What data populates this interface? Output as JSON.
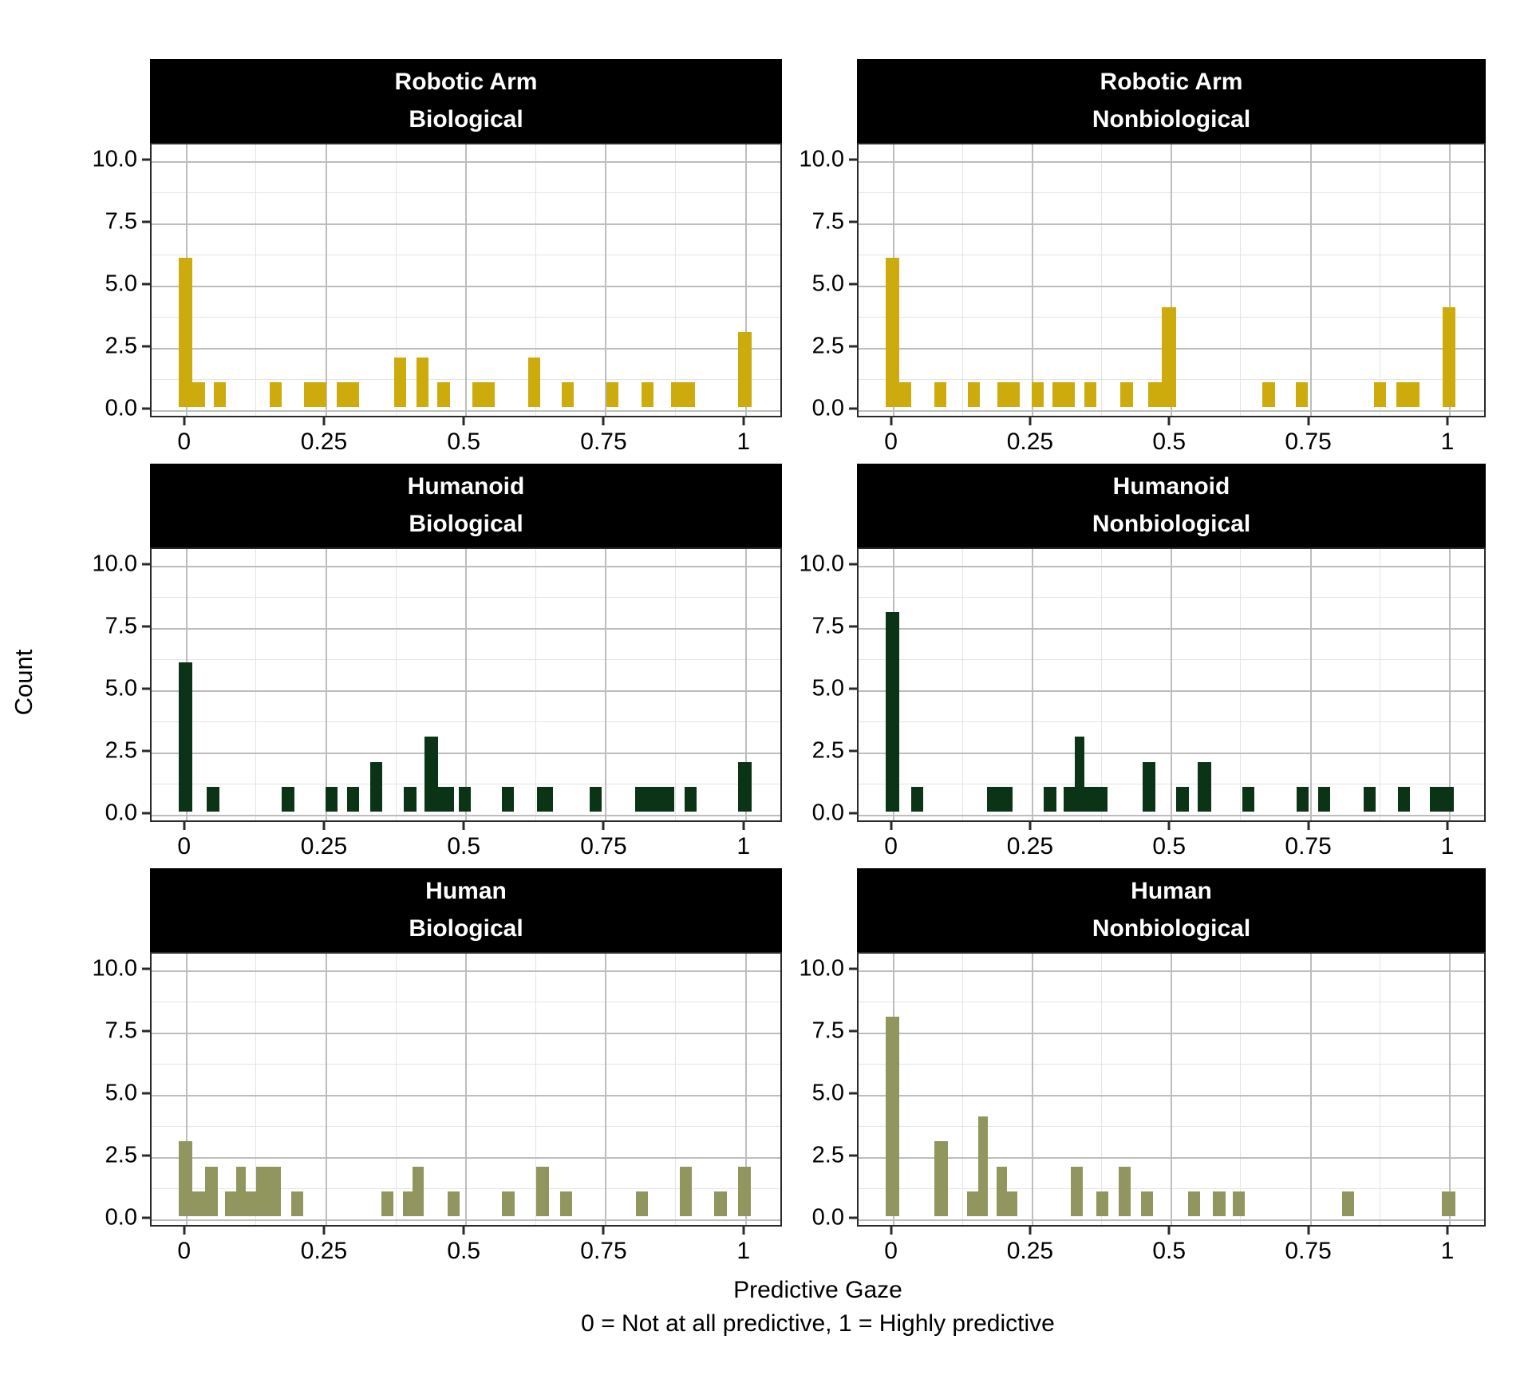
{
  "figure": {
    "y_axis_title": "Count",
    "x_axis_title_line1": "Predictive Gaze",
    "x_axis_title_line2": "0 = Not at all predictive, 1 = Highly predictive",
    "y_tick_labels": [
      "10.0",
      "7.5",
      "5.0",
      "2.5",
      "0.0"
    ],
    "x_tick_labels": [
      "0",
      "0.25",
      "0.5",
      "0.75",
      "1"
    ],
    "strip_bg_color": "#000000",
    "strip_text_color": "#ffffff",
    "colors": {
      "robotic_arm": "#CDAB0D",
      "humanoid": "#0B3417",
      "human": "#91965F"
    }
  },
  "chart_data": [
    {
      "type": "bar",
      "facet_line1": "Robotic Arm",
      "facet_line2": "Biological",
      "color": "#CDAB0D",
      "xlabel": "Predictive Gaze",
      "ylabel": "Count",
      "xlim": [
        -0.06,
        1.06
      ],
      "ylim": [
        0,
        10.4
      ],
      "x_ticks": [
        0,
        0.25,
        0.5,
        0.75,
        1
      ],
      "y_ticks": [
        0,
        2.5,
        5,
        7.5,
        10
      ],
      "bars_x_width_count": [
        [
          -0.012,
          0.024,
          6
        ],
        [
          0.012,
          0.022,
          1
        ],
        [
          0.05,
          0.022,
          1
        ],
        [
          0.15,
          0.022,
          1
        ],
        [
          0.212,
          0.04,
          1
        ],
        [
          0.27,
          0.04,
          1
        ],
        [
          0.372,
          0.022,
          2
        ],
        [
          0.412,
          0.022,
          2
        ],
        [
          0.45,
          0.022,
          1
        ],
        [
          0.512,
          0.04,
          1
        ],
        [
          0.612,
          0.022,
          2
        ],
        [
          0.672,
          0.022,
          1
        ],
        [
          0.752,
          0.022,
          1
        ],
        [
          0.815,
          0.022,
          1
        ],
        [
          0.868,
          0.042,
          1
        ],
        [
          0.988,
          0.024,
          3
        ]
      ]
    },
    {
      "type": "bar",
      "facet_line1": "Robotic Arm",
      "facet_line2": "Nonbiological",
      "color": "#CDAB0D",
      "xlabel": "Predictive Gaze",
      "ylabel": "Count",
      "xlim": [
        -0.06,
        1.06
      ],
      "ylim": [
        0,
        10.4
      ],
      "x_ticks": [
        0,
        0.25,
        0.5,
        0.75,
        1
      ],
      "y_ticks": [
        0,
        2.5,
        5,
        7.5,
        10
      ],
      "bars_x_width_count": [
        [
          -0.012,
          0.024,
          6
        ],
        [
          0.012,
          0.022,
          1
        ],
        [
          0.075,
          0.022,
          1
        ],
        [
          0.135,
          0.022,
          1
        ],
        [
          0.188,
          0.04,
          1
        ],
        [
          0.25,
          0.022,
          1
        ],
        [
          0.288,
          0.04,
          1
        ],
        [
          0.345,
          0.022,
          1
        ],
        [
          0.41,
          0.022,
          1
        ],
        [
          0.46,
          0.024,
          1
        ],
        [
          0.484,
          0.026,
          4
        ],
        [
          0.665,
          0.022,
          1
        ],
        [
          0.725,
          0.022,
          1
        ],
        [
          0.865,
          0.022,
          1
        ],
        [
          0.905,
          0.042,
          1
        ],
        [
          0.988,
          0.024,
          4
        ]
      ]
    },
    {
      "type": "bar",
      "facet_line1": "Humanoid",
      "facet_line2": "Biological",
      "color": "#0B3417",
      "xlabel": "Predictive Gaze",
      "ylabel": "Count",
      "xlim": [
        -0.06,
        1.06
      ],
      "ylim": [
        0,
        10.4
      ],
      "x_ticks": [
        0,
        0.25,
        0.5,
        0.75,
        1
      ],
      "y_ticks": [
        0,
        2.5,
        5,
        7.5,
        10
      ],
      "bars_x_width_count": [
        [
          -0.012,
          0.024,
          6
        ],
        [
          0.038,
          0.022,
          1
        ],
        [
          0.172,
          0.022,
          1
        ],
        [
          0.25,
          0.022,
          1
        ],
        [
          0.288,
          0.022,
          1
        ],
        [
          0.33,
          0.022,
          2
        ],
        [
          0.39,
          0.022,
          1
        ],
        [
          0.427,
          0.024,
          3
        ],
        [
          0.451,
          0.028,
          1
        ],
        [
          0.488,
          0.022,
          1
        ],
        [
          0.565,
          0.022,
          1
        ],
        [
          0.628,
          0.028,
          1
        ],
        [
          0.722,
          0.022,
          1
        ],
        [
          0.803,
          0.07,
          1
        ],
        [
          0.892,
          0.022,
          1
        ],
        [
          0.988,
          0.024,
          2
        ]
      ]
    },
    {
      "type": "bar",
      "facet_line1": "Humanoid",
      "facet_line2": "Nonbiological",
      "color": "#0B3417",
      "xlabel": "Predictive Gaze",
      "ylabel": "Count",
      "xlim": [
        -0.06,
        1.06
      ],
      "ylim": [
        0,
        10.4
      ],
      "x_ticks": [
        0,
        0.25,
        0.5,
        0.75,
        1
      ],
      "y_ticks": [
        0,
        2.5,
        5,
        7.5,
        10
      ],
      "bars_x_width_count": [
        [
          -0.012,
          0.024,
          8
        ],
        [
          0.033,
          0.022,
          1
        ],
        [
          0.17,
          0.046,
          1
        ],
        [
          0.272,
          0.022,
          1
        ],
        [
          0.308,
          0.02,
          1
        ],
        [
          0.328,
          0.017,
          3
        ],
        [
          0.345,
          0.042,
          1
        ],
        [
          0.449,
          0.024,
          2
        ],
        [
          0.51,
          0.022,
          1
        ],
        [
          0.549,
          0.024,
          2
        ],
        [
          0.628,
          0.022,
          1
        ],
        [
          0.726,
          0.022,
          1
        ],
        [
          0.765,
          0.022,
          1
        ],
        [
          0.846,
          0.022,
          1
        ],
        [
          0.908,
          0.022,
          1
        ],
        [
          0.966,
          0.042,
          1
        ]
      ]
    },
    {
      "type": "bar",
      "facet_line1": "Human",
      "facet_line2": "Biological",
      "color": "#91965F",
      "xlabel": "Predictive Gaze",
      "ylabel": "Count",
      "xlim": [
        -0.06,
        1.06
      ],
      "ylim": [
        0,
        10.4
      ],
      "x_ticks": [
        0,
        0.25,
        0.5,
        0.75,
        1
      ],
      "y_ticks": [
        0,
        2.5,
        5,
        7.5,
        10
      ],
      "bars_x_width_count": [
        [
          -0.012,
          0.024,
          3
        ],
        [
          0.012,
          0.022,
          1
        ],
        [
          0.034,
          0.024,
          2
        ],
        [
          0.07,
          0.02,
          1
        ],
        [
          0.09,
          0.018,
          2
        ],
        [
          0.108,
          0.018,
          1
        ],
        [
          0.126,
          0.044,
          2
        ],
        [
          0.188,
          0.022,
          1
        ],
        [
          0.35,
          0.022,
          1
        ],
        [
          0.388,
          0.018,
          1
        ],
        [
          0.406,
          0.02,
          2
        ],
        [
          0.468,
          0.022,
          1
        ],
        [
          0.566,
          0.022,
          1
        ],
        [
          0.627,
          0.022,
          2
        ],
        [
          0.669,
          0.022,
          1
        ],
        [
          0.805,
          0.022,
          1
        ],
        [
          0.883,
          0.022,
          2
        ],
        [
          0.945,
          0.022,
          1
        ],
        [
          0.987,
          0.024,
          2
        ]
      ]
    },
    {
      "type": "bar",
      "facet_line1": "Human",
      "facet_line2": "Nonbiological",
      "color": "#91965F",
      "xlabel": "Predictive Gaze",
      "ylabel": "Count",
      "xlim": [
        -0.06,
        1.06
      ],
      "ylim": [
        0,
        10.4
      ],
      "x_ticks": [
        0,
        0.25,
        0.5,
        0.75,
        1
      ],
      "y_ticks": [
        0,
        2.5,
        5,
        7.5,
        10
      ],
      "bars_x_width_count": [
        [
          -0.012,
          0.024,
          8
        ],
        [
          0.075,
          0.024,
          3
        ],
        [
          0.134,
          0.02,
          1
        ],
        [
          0.154,
          0.017,
          4
        ],
        [
          0.187,
          0.019,
          2
        ],
        [
          0.206,
          0.019,
          1
        ],
        [
          0.32,
          0.022,
          2
        ],
        [
          0.366,
          0.022,
          1
        ],
        [
          0.406,
          0.022,
          2
        ],
        [
          0.446,
          0.022,
          1
        ],
        [
          0.531,
          0.022,
          1
        ],
        [
          0.576,
          0.022,
          1
        ],
        [
          0.611,
          0.022,
          1
        ],
        [
          0.808,
          0.022,
          1
        ],
        [
          0.987,
          0.024,
          1
        ]
      ]
    }
  ]
}
